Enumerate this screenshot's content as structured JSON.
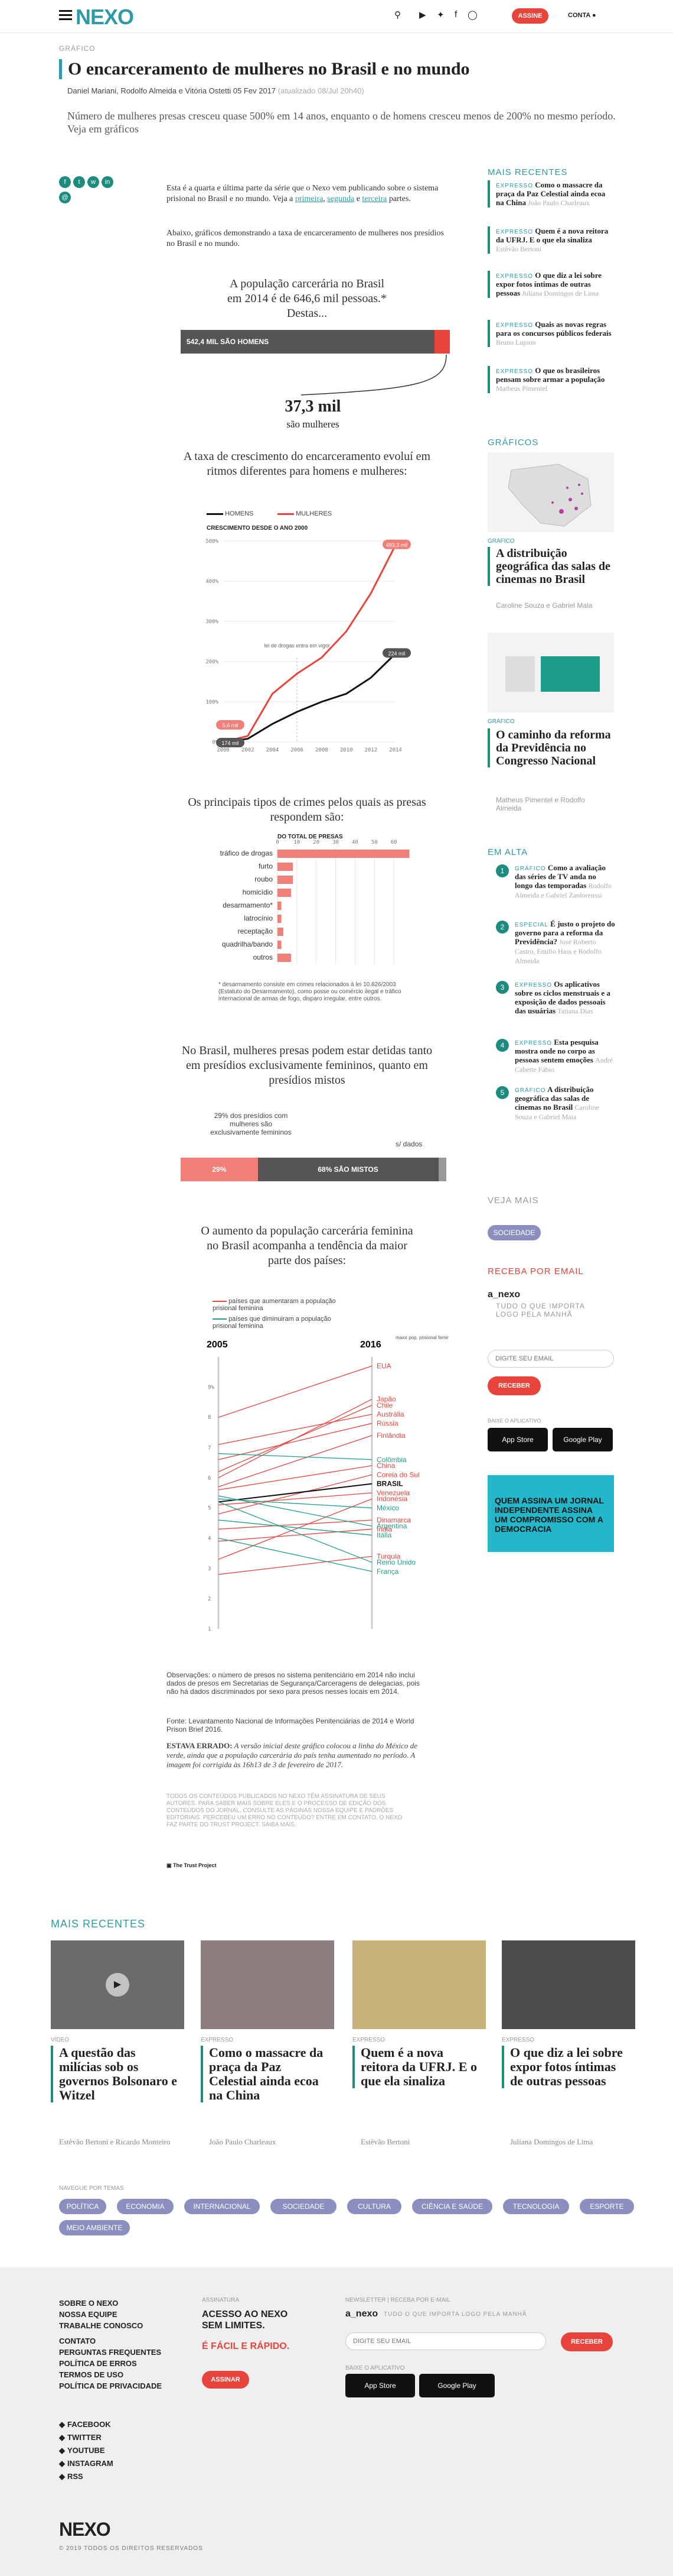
{
  "header": {
    "logo": "NEXO",
    "subscribe": "ASSINE",
    "account": "CONTA"
  },
  "article": {
    "kicker": "GRÁFICO",
    "title": "O encarceramento de mulheres no Brasil e no mundo",
    "byline": "Daniel Mariani, Rodolfo Almeida e Vitória Ostetti",
    "date": "05 Fev 2017",
    "updated": "(atualizado 08/Jul 20h40)",
    "lede": "Número de mulheres presas cresceu quase 500% em 14 anos, enquanto o de homens cresceu menos de 200% no mesmo período. Veja em gráficos",
    "p1a": "Esta é a quarta e última parte da série que o Nexo vem publicando sobre o sistema prisional no Brasil e no mundo. Veja a ",
    "p1l1": "primeira",
    "p1b": ", ",
    "p1l2": "segunda",
    "p1c": " e ",
    "p1l3": "terceira",
    "p1d": " partes.",
    "p2": "Abaixo, gráficos demonstrando a taxa de encarceramento de mulheres nos presídios no Brasil e no mundo."
  },
  "chart1": {
    "title_a": "A população carcerária no Brasil",
    "title_b": "em 2014 é de 646,6 mil pessoas.*",
    "title_c": "Destas...",
    "men_label": "542,4 MIL SÃO HOMENS",
    "women_value": "37,3 mil",
    "women_label": "são mulheres"
  },
  "chart2": {
    "title": "A taxa de crescimento do encarceramento evoluí em ritmos diferentes para homens e mulheres:",
    "legend_men": "HOMENS",
    "legend_women": "MULHERES",
    "subtitle": "CRESCIMENTO DESDE O ANO 2000",
    "annotation": "lei de drogas entra em vigor",
    "end_women": "493,3 mil",
    "end_men": "224 mil",
    "start_women": "5,6 mil",
    "start_men": "174 mil"
  },
  "chart3": {
    "title": "Os principais tipos de crimes pelos quais as presas respondem são:",
    "axis_title": "DO TOTAL DE PRESAS",
    "note": "* desarmamento consiste em crimes relacionados à lei 10.826/2003 (Estatuto do Desarmamento), como posse ou comércio ilegal e tráfico internacional de armas de fogo, disparo irregular, entre outros."
  },
  "chart4": {
    "title": "No Brasil, mulheres presas podem estar detidas tanto em presídios exclusivamente femininos, quanto em presídios mistos",
    "annot_left": "29% dos presídios com mulheres são exclusivamente femininos",
    "annot_right": "s/ dados",
    "left_label": "29%",
    "right_label": "68% SÃO MISTOS"
  },
  "chart5": {
    "title": "O aumento da população carcerária feminina no Brasil acompanha a tendência da maior parte dos países:",
    "legend_up": "países que aumentaram a população prisional feminina",
    "legend_down": "países que diminuiram a população prisional feminina",
    "year_left": "2005",
    "year_right": "2016",
    "note_right": "maior pop. prisional feminina",
    "countries": [
      "EUA",
      "Japão",
      "Chile",
      "Austrália",
      "Rússia",
      "Finlândia",
      "Colômbia",
      "China",
      "Coreia do Sul",
      "BRASIL",
      "Venezuela",
      "Indonésia",
      "México",
      "Dinamarca",
      "Argentina",
      "Índia",
      "Itália",
      "Turquia",
      "Reino Unido",
      "França"
    ]
  },
  "notes": {
    "obs": "Observações: o número de presos no sistema penitenciário em 2014 não inclui dados de presos em Secretarias de Segurança/Carceragens de delegacias, pois não há dados discriminados por sexo para presos nesses locais em 2014.",
    "source": "Fonte: Levantamento Nacional de Informações Penitenciárias de 2014 e World Prison Brief 2016.",
    "errata_label": "ESTAVA ERRADO:",
    "errata": " A versão inicial deste gráfico colocou a linha do México de verde, ainda que a população carcerária do país tenha aumentado no período. A imagem foi corrigida às 16h13 de 3 de fevereiro de 2017.",
    "policy": "TODOS OS CONTEÚDOS PUBLICADOS NO NEXO TÊM ASSINATURA DE SEUS AUTORES. PARA SABER MAIS SOBRE ELES E O PROCESSO DE EDIÇÃO DOS CONTEÚDOS DO JORNAL, CONSULTE AS PÁGINAS NOSSA EQUIPE E PADRÕES EDITORIAIS. PERCEBEU UM ERRO NO CONTEÚDO? ENTRE EM CONTATO. O NEXO FAZ PARTE DO TRUST PROJECT. SAIBA MAIS.",
    "trust": "The Trust Project"
  },
  "sidebar": {
    "recent_head": "MAIS RECENTES",
    "recent": [
      {
        "tag": "EXPRESSO",
        "title": "Como o massacre da praça da Paz Celestial ainda ecoa na China",
        "author": "João Paulo Charleaux"
      },
      {
        "tag": "EXPRESSO",
        "title": "Quem é a nova reitora da UFRJ. E o que ela sinaliza",
        "author": "Estêvão Bertoni"
      },
      {
        "tag": "EXPRESSO",
        "title": "O que diz a lei sobre expor fotos íntimas de outras pessoas",
        "author": "Juliana Domingos de Lima"
      },
      {
        "tag": "EXPRESSO",
        "title": "Quais as novas regras para os concursos públicos federais",
        "author": "Bruno Lupion"
      },
      {
        "tag": "EXPRESSO",
        "title": "O que os brasileiros pensam sobre armar a população",
        "author": "Matheus Pimentel"
      }
    ],
    "graficos_head": "GRÁFICOS",
    "g1_tag": "GRÁFICO",
    "g1_title": "A distribuição geográfica das salas de cinemas no Brasil",
    "g1_author": "Caroline Souza e Gabriel Maia",
    "g2_tag": "GRÁFICO",
    "g2_title": "O caminho da reforma da Previdência no Congresso Nacional",
    "g2_author": "Matheus Pimentel e Rodolfo Almeida",
    "alta_head": "EM ALTA",
    "alta": [
      {
        "n": "1",
        "tag": "GRÁFICO",
        "title": "Como a avaliação das séries de TV anda no longo das temporadas",
        "author": "Rodolfo Almeida e Gabriel Zanlorenssi"
      },
      {
        "n": "2",
        "tag": "ESPECIAL",
        "title": "É justo o projeto do governo para a reforma da Previdência?",
        "author": "José Roberto Castro, Emilio Hass e Rodolfo Almeida"
      },
      {
        "n": "3",
        "tag": "EXPRESSO",
        "title": "Os aplicativos sobre os ciclos menstruais e a exposição de dados pessoais das usuárias",
        "author": "Tatiana Dias"
      },
      {
        "n": "4",
        "tag": "EXPRESSO",
        "title": "Esta pesquisa mostra onde no corpo as pessoas sentem emoções",
        "author": "André Cabette Fábio"
      },
      {
        "n": "5",
        "tag": "GRÁFICO",
        "title": "A distribuição geográfica das salas de cinemas no Brasil",
        "author": "Caroline Souza e Gabriel Maia"
      }
    ],
    "veja_head": "VEJA MAIS",
    "veja_pill": "SOCIEDADE",
    "email_head": "RECEBA POR EMAIL",
    "email_brand": "a_nexo",
    "email_desc": "TUDO O QUE IMPORTA LOGO PELA MANHÃ",
    "email_placeholder": "DIGITE SEU EMAIL",
    "email_button": "RECEBER",
    "app_head": "BAIXE O APLICATIVO",
    "app_store": "App Store",
    "play_store": "Google Play",
    "promo": "QUEM ASSINA UM JORNAL INDEPENDENTE ASSINA UM COMPROMISSO COM A DEMOCRACIA"
  },
  "bottom": {
    "head": "MAIS RECENTES",
    "cards": [
      {
        "tag": "VÍDEO",
        "title": "A questão das milícias sob os governos Bolsonaro e Witzel",
        "author": "Estêvão Bertoni e Ricardo Monteiro"
      },
      {
        "tag": "EXPRESSO",
        "title": "Como o massacre da praça da Paz Celestial ainda ecoa na China",
        "author": "João Paulo Charleaux"
      },
      {
        "tag": "EXPRESSO",
        "title": "Quem é a nova reitora da UFRJ. E o que ela sinaliza",
        "author": "Estêvão Bertoni"
      },
      {
        "tag": "EXPRESSO",
        "title": "O que diz a lei sobre expor fotos íntimas de outras pessoas",
        "author": "Juliana Domingos de Lima"
      }
    ],
    "topics_head": "NAVEGUE POR TEMAS",
    "topics": [
      "POLÍTICA",
      "ECONOMIA",
      "INTERNACIONAL",
      "SOCIEDADE",
      "CULTURA",
      "CIÊNCIA E SAÚDE",
      "TECNOLOGIA",
      "ESPORTE",
      "MEIO AMBIENTE"
    ]
  },
  "footer": {
    "links": [
      "SOBRE O NEXO",
      "NOSSA EQUIPE",
      "TRABALHE CONOSCO",
      "CONTATO",
      "PERGUNTAS FREQUENTES",
      "POLÍTICA DE ERROS",
      "TERMOS DE USO",
      "POLÍTICA DE PRIVACIDADE"
    ],
    "socials": [
      "FACEBOOK",
      "TWITTER",
      "YOUTUBE",
      "INSTAGRAM",
      "RSS"
    ],
    "sub_head": "ASSINATURA",
    "sub_text": "ACESSO AO NEXO SEM LIMITES.",
    "sub_text2": "É FÁCIL E RÁPIDO.",
    "sub_button": "ASSINAR",
    "news_head": "NEWSLETTER | RECEBA POR E-MAIL",
    "news_brand": "a_nexo",
    "news_desc": "TUDO O QUE IMPORTA LOGO PELA MANHÃ",
    "news_placeholder": "DIGITE SEU EMAIL",
    "news_button": "RECEBER",
    "app_head": "BAIXE O APLICATIVO",
    "logo": "NEXO",
    "copyright": "© 2019 TODOS OS DIREITOS RESERVADOS"
  },
  "chart_data": [
    {
      "type": "bar",
      "title": "A população carcerária no Brasil em 2014 é de 646,6 mil pessoas.",
      "categories": [
        "homens",
        "mulheres"
      ],
      "values": [
        542.4,
        37.3
      ],
      "total": 646.6,
      "unit": "mil"
    },
    {
      "type": "line",
      "title": "A taxa de crescimento do encarceramento evoluí em ritmos diferentes para homens e mulheres:",
      "subtitle": "CRESCIMENTO DESDE O ANO 2000",
      "x": [
        2000,
        2002,
        2004,
        2006,
        2008,
        2010,
        2012,
        2014
      ],
      "ylim": [
        0,
        500
      ],
      "yticks": [
        0,
        100,
        200,
        300,
        400,
        500
      ],
      "series": [
        {
          "name": "HOMENS",
          "values": [
            0,
            8,
            45,
            75,
            100,
            120,
            160,
            220
          ]
        },
        {
          "name": "MULHERES",
          "values": [
            0,
            15,
            120,
            170,
            210,
            275,
            370,
            490
          ]
        }
      ]
    },
    {
      "type": "bar",
      "title": "Os principais tipos de crimes pelos quais as presas respondem são:",
      "xlabel": "DO TOTAL DE PRESAS",
      "xlim": [
        0,
        70
      ],
      "xticks": [
        0,
        10,
        20,
        30,
        40,
        50,
        60
      ],
      "categories": [
        "tráfico de drogas",
        "furto",
        "roubo",
        "homicídio",
        "desarmamento*",
        "latrocínio",
        "receptação",
        "quadrilha/bando",
        "outros"
      ],
      "values": [
        68,
        8,
        8,
        7,
        2,
        2,
        3,
        2,
        7
      ]
    },
    {
      "type": "bar",
      "title": "No Brasil, mulheres presas podem estar detidas tanto em presídios exclusivamente femininos, quanto em presídios mistos",
      "categories": [
        "exclusivamente femininos",
        "mistos",
        "s/ dados"
      ],
      "values": [
        29,
        68,
        3
      ]
    },
    {
      "type": "line",
      "title": "O aumento da população carcerária feminina no Brasil acompanha a tendência da maior parte dos países:",
      "x": [
        2005,
        2016
      ],
      "ylabel": "%",
      "yticks": [
        1,
        2,
        3,
        4,
        5,
        6,
        7,
        8,
        9
      ],
      "series": [
        {
          "name": "EUA",
          "values": [
            8.0,
            9.7
          ]
        },
        {
          "name": "Japão",
          "values": [
            6.0,
            8.6
          ]
        },
        {
          "name": "Chile",
          "values": [
            6.2,
            8.4
          ]
        },
        {
          "name": "Austrália",
          "values": [
            7.1,
            8.1
          ]
        },
        {
          "name": "Rússia",
          "values": [
            6.6,
            7.8
          ]
        },
        {
          "name": "Finlândia",
          "values": [
            5.7,
            7.4
          ]
        },
        {
          "name": "Colômbia",
          "values": [
            6.8,
            6.6
          ]
        },
        {
          "name": "China",
          "values": [
            5.6,
            6.4
          ]
        },
        {
          "name": "Coreia do Sul",
          "values": [
            4.8,
            6.1
          ]
        },
        {
          "name": "BRASIL",
          "values": [
            5.2,
            5.8
          ]
        },
        {
          "name": "Venezuela",
          "values": [
            5.1,
            5.5
          ]
        },
        {
          "name": "Indonésia",
          "values": [
            3.3,
            5.3
          ]
        },
        {
          "name": "México",
          "values": [
            5.3,
            5.0
          ]
        },
        {
          "name": "Dinamarca",
          "values": [
            4.3,
            4.6
          ]
        },
        {
          "name": "Argentina",
          "values": [
            5.4,
            4.4
          ]
        },
        {
          "name": "Índia",
          "values": [
            3.9,
            4.3
          ]
        },
        {
          "name": "Itália",
          "values": [
            4.6,
            4.1
          ]
        },
        {
          "name": "Turquia",
          "values": [
            2.8,
            3.4
          ]
        },
        {
          "name": "Reino Unido",
          "values": [
            5.2,
            3.2
          ]
        },
        {
          "name": "França",
          "values": [
            4.0,
            2.9
          ]
        }
      ]
    }
  ]
}
